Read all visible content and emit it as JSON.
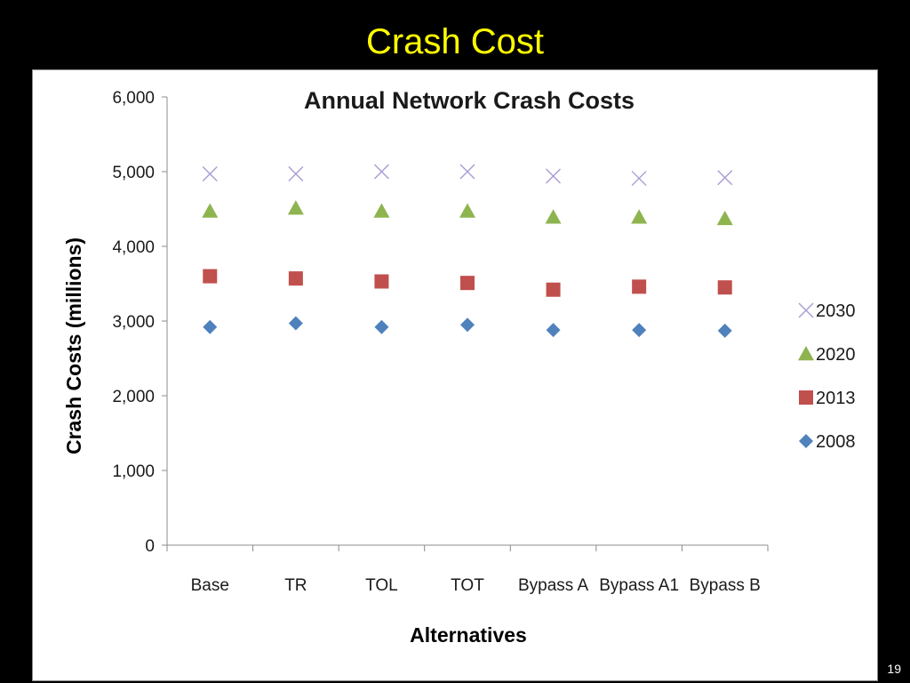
{
  "slide": {
    "title": "Crash Cost",
    "page_number": "19"
  },
  "chart_data": {
    "type": "scatter",
    "title": "Annual Network Crash Costs",
    "xlabel": "Alternatives",
    "ylabel": "Crash Costs (millions)",
    "ylim": [
      0,
      6000
    ],
    "yticks": [
      "0",
      "1,000",
      "2,000",
      "3,000",
      "4,000",
      "5,000",
      "6,000"
    ],
    "categories": [
      "Base",
      "TR",
      "TOL",
      "TOT",
      "Bypass A",
      "Bypass A1",
      "Bypass B"
    ],
    "legend_position": "right",
    "grid": false,
    "series": [
      {
        "name": "2030",
        "marker": "x",
        "color": "#a99bd4",
        "values": [
          4970,
          4970,
          5000,
          5000,
          4940,
          4910,
          4920
        ]
      },
      {
        "name": "2020",
        "marker": "triangle",
        "color": "#8eb44f",
        "values": [
          4470,
          4510,
          4470,
          4470,
          4390,
          4390,
          4370
        ]
      },
      {
        "name": "2013",
        "marker": "square",
        "color": "#c0504d",
        "values": [
          3600,
          3570,
          3530,
          3510,
          3420,
          3460,
          3450
        ]
      },
      {
        "name": "2008",
        "marker": "diamond",
        "color": "#4f81bd",
        "values": [
          2920,
          2970,
          2920,
          2950,
          2880,
          2880,
          2870
        ]
      }
    ],
    "legend_order": [
      "2030",
      "2020",
      "2013",
      "2008"
    ]
  }
}
